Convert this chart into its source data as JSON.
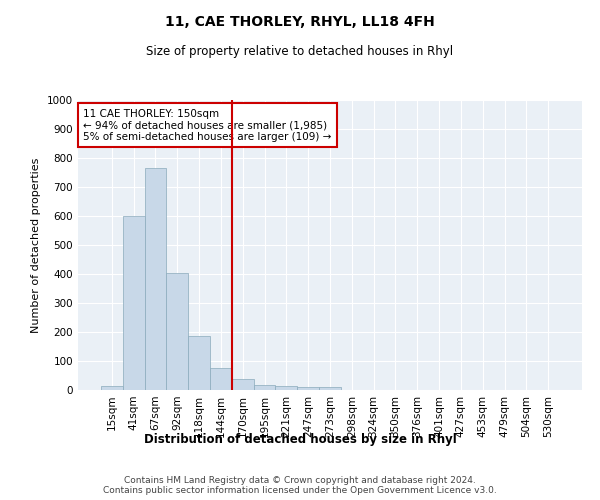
{
  "title": "11, CAE THORLEY, RHYL, LL18 4FH",
  "subtitle": "Size of property relative to detached houses in Rhyl",
  "xlabel": "Distribution of detached houses by size in Rhyl",
  "ylabel": "Number of detached properties",
  "footer_line1": "Contains HM Land Registry data © Crown copyright and database right 2024.",
  "footer_line2": "Contains public sector information licensed under the Open Government Licence v3.0.",
  "annotation_line1": "11 CAE THORLEY: 150sqm",
  "annotation_line2": "← 94% of detached houses are smaller (1,985)",
  "annotation_line3": "5% of semi-detached houses are larger (109) →",
  "bar_color": "#c8d8e8",
  "bar_edge_color": "#8aaabb",
  "vline_color": "#cc0000",
  "annotation_box_color": "#cc0000",
  "background_color": "#eaf0f6",
  "grid_color": "#ffffff",
  "categories": [
    "15sqm",
    "41sqm",
    "67sqm",
    "92sqm",
    "118sqm",
    "144sqm",
    "170sqm",
    "195sqm",
    "221sqm",
    "247sqm",
    "273sqm",
    "298sqm",
    "324sqm",
    "350sqm",
    "376sqm",
    "401sqm",
    "427sqm",
    "453sqm",
    "479sqm",
    "504sqm",
    "530sqm"
  ],
  "values": [
    14,
    600,
    765,
    403,
    187,
    75,
    38,
    18,
    14,
    10,
    10,
    0,
    0,
    0,
    0,
    0,
    0,
    0,
    0,
    0,
    0
  ],
  "ylim": [
    0,
    1000
  ],
  "yticks": [
    0,
    100,
    200,
    300,
    400,
    500,
    600,
    700,
    800,
    900,
    1000
  ],
  "vline_x": 5.5,
  "title_fontsize": 10,
  "subtitle_fontsize": 8.5,
  "ylabel_fontsize": 8,
  "xlabel_fontsize": 8.5,
  "tick_fontsize": 7.5,
  "footer_fontsize": 6.5,
  "annotation_fontsize": 7.5
}
